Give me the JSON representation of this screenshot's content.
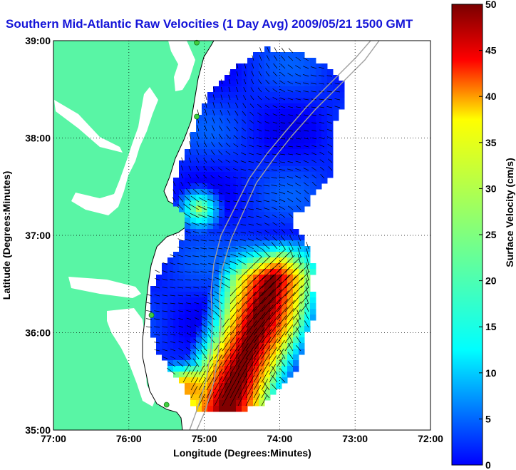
{
  "title": "Southern Mid-Atlantic Raw Velocities (1 Day Avg) 2009/05/21 1500 GMT",
  "colors": {
    "land": "#59f5a5",
    "coast_line": "#000000",
    "shelf_contour": "#a0a0a0",
    "station": "#3fcf3f",
    "vector": "#000000"
  },
  "chart_data": {
    "type": "heatmap",
    "title": "Southern Mid-Atlantic Raw Velocities (1 Day Avg) 2009/05/21 1500 GMT",
    "xlabel": "Longitude (Degrees:Minutes)",
    "ylabel": "Latitude (Degrees:Minutes)",
    "xlim": [
      -77,
      -72
    ],
    "ylim": [
      35,
      39
    ],
    "x_ticks": [
      "77:00",
      "76:00",
      "75:00",
      "74:00",
      "73:00",
      "72:00"
    ],
    "y_ticks": [
      "35:00",
      "36:00",
      "37:00",
      "38:00",
      "39:00"
    ],
    "grid": true,
    "colorbar": {
      "label": "Surface Velocity (cm/s)",
      "min": 0,
      "max": 50,
      "ticks": [
        "0",
        "5",
        "10",
        "15",
        "20",
        "25",
        "30",
        "35",
        "40",
        "45",
        "50"
      ],
      "colormap": "jet"
    },
    "station_markers": [
      {
        "lon": -75.1,
        "lat": 38.98
      },
      {
        "lon": -75.1,
        "lat": 38.22
      },
      {
        "lon": -75.7,
        "lat": 36.18
      },
      {
        "lon": -75.5,
        "lat": 35.26
      }
    ]
  }
}
